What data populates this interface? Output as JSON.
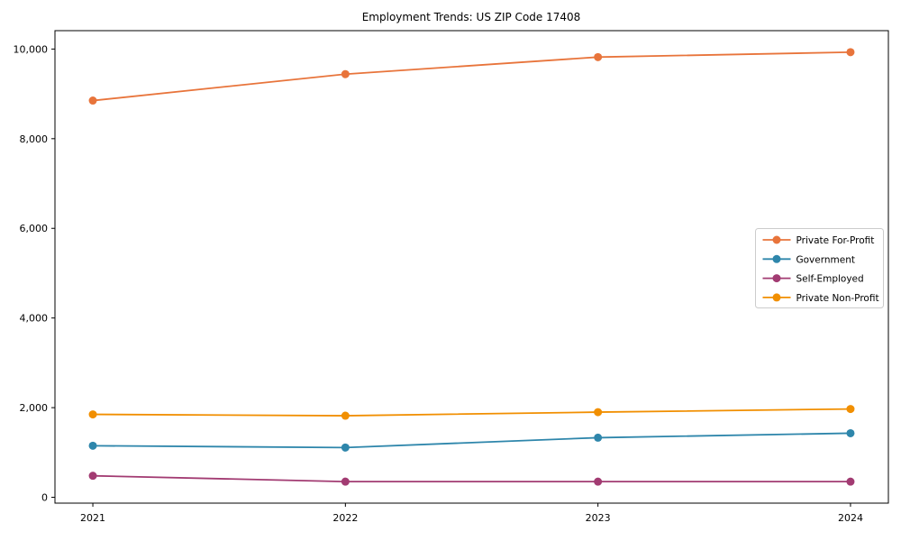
{
  "chart_data": {
    "type": "line",
    "title": "Employment Trends: US ZIP Code 17408",
    "x": [
      2021,
      2022,
      2023,
      2024
    ],
    "x_tick_labels": [
      "2021",
      "2022",
      "2023",
      "2024"
    ],
    "series": [
      {
        "name": "Private For-Profit",
        "color": "#E8743B",
        "values": [
          8850,
          9440,
          9820,
          9930
        ]
      },
      {
        "name": "Government",
        "color": "#2E86AB",
        "values": [
          1150,
          1110,
          1330,
          1430
        ]
      },
      {
        "name": "Self-Employed",
        "color": "#A23B72",
        "values": [
          480,
          350,
          350,
          350
        ]
      },
      {
        "name": "Private Non-Profit",
        "color": "#F18F01",
        "values": [
          1850,
          1820,
          1900,
          1970
        ]
      }
    ],
    "y_ticks": [
      0,
      2000,
      4000,
      6000,
      8000,
      10000
    ],
    "y_tick_labels": [
      "0",
      "2,000",
      "4,000",
      "6,000",
      "8,000",
      "10,000"
    ],
    "xlim": [
      2020.85,
      2024.15
    ],
    "ylim": [
      -130,
      10410
    ],
    "grid": false,
    "legend_position": "center-right",
    "marker": "circle",
    "line_width": 1.8,
    "marker_radius": 4.5,
    "background_color": "#ffffff",
    "axis_color": "#000000",
    "legend_border_color": "#cccccc"
  }
}
